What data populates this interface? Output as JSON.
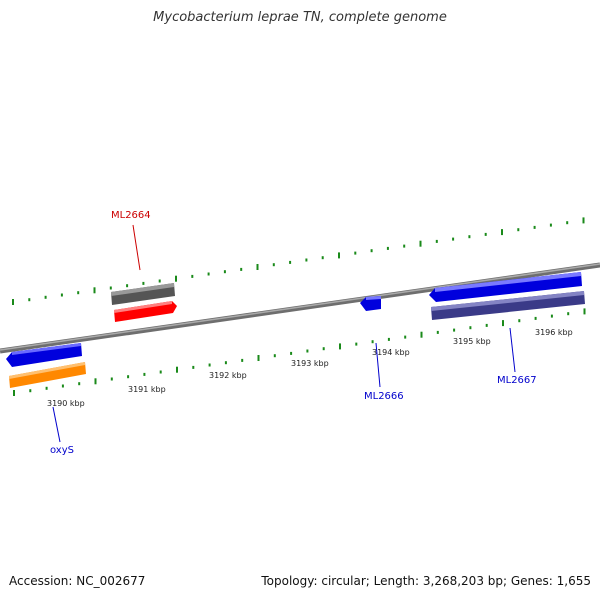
{
  "title": "Mycobacterium leprae TN, complete genome",
  "footer": {
    "accession": "Accession: NC_002677",
    "summary": "Topology: circular; Length: 3,268,203 bp; Genes: 1,655"
  },
  "colors": {
    "backbone": "#888888",
    "tick": "#1a8a1a",
    "forward_gene": "#0000dd",
    "reverse_gene": "#ff8800",
    "label_blue": "#0000cc",
    "label_red": "#cc0000"
  },
  "scale_labels": [
    "3190 kbp",
    "3191 kbp",
    "3192 kbp",
    "3193 kbp",
    "3194 kbp",
    "3195 kbp",
    "3196 kbp"
  ],
  "genes": [
    {
      "name": "oxyS",
      "color": "#0000dd"
    },
    {
      "name": "",
      "color": "#ff8800"
    },
    {
      "name": "ML2664",
      "color": "#cc0000"
    },
    {
      "name": "",
      "color": "#666666"
    },
    {
      "name": "ML2666",
      "color": "#0000dd"
    },
    {
      "name": "ML2667",
      "color": "#0000dd"
    },
    {
      "name": "",
      "color": "#404090"
    }
  ]
}
